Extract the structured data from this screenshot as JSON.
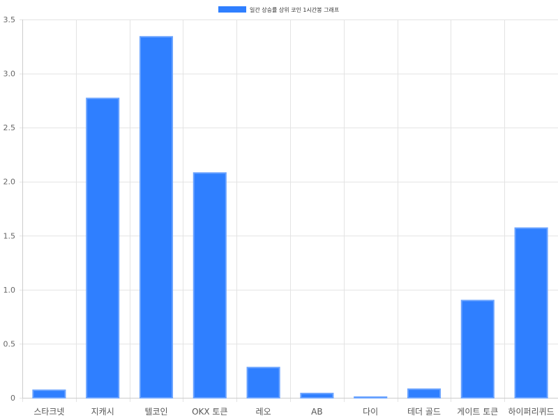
{
  "chart_data": {
    "type": "bar",
    "categories": [
      "스타크넷",
      "지캐시",
      "텔코인",
      "OKX 토큰",
      "레오",
      "AB",
      "다이",
      "테더 골드",
      "게이트 토큰",
      "하이퍼리퀴드"
    ],
    "series": [
      {
        "name": "일간 상승률 상위 코인 1시간봉 그래프",
        "values": [
          0.07,
          2.77,
          3.34,
          2.08,
          0.28,
          0.04,
          0.005,
          0.08,
          0.9,
          1.57
        ],
        "color": "#2f7fff",
        "border_color": "#6aa3ff"
      }
    ],
    "ylim": [
      0,
      3.5
    ],
    "yticks": [
      "0",
      "0.5",
      "1.0",
      "1.5",
      "2.0",
      "2.5",
      "3.0",
      "3.5"
    ],
    "ytick_values": [
      0,
      0.5,
      1.0,
      1.5,
      2.0,
      2.5,
      3.0,
      3.5
    ],
    "grid": true,
    "legend_position": "top-center"
  }
}
